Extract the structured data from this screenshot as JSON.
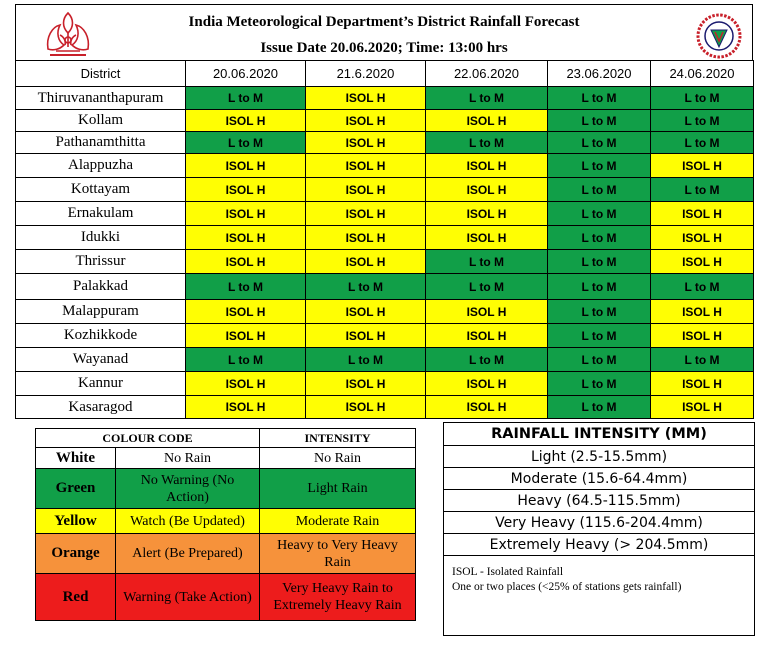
{
  "header": {
    "title": "India Meteorological Department’s District Rainfall Forecast",
    "issue_line": "Issue Date  20.06.2020;  Time: 13:00 hrs"
  },
  "forecast": {
    "column_header": "District",
    "dates": [
      "20.06.2020",
      "21.6.2020",
      "22.06.2020",
      "23.06.2020",
      "24.06.2020"
    ],
    "rows": [
      {
        "district": "Thiruvananthapuram",
        "cells": [
          "L to M",
          "ISOL H",
          "L to M",
          "L to M",
          "L to M"
        ],
        "colors": [
          "green",
          "yellow",
          "green",
          "green",
          "green"
        ]
      },
      {
        "district": "Kollam",
        "cells": [
          "ISOL H",
          "ISOL H",
          "ISOL H",
          "L to M",
          "L to M"
        ],
        "colors": [
          "yellow",
          "yellow",
          "yellow",
          "green",
          "green"
        ]
      },
      {
        "district": "Pathanamthitta",
        "cells": [
          "L to M",
          "ISOL H",
          "L to M",
          "L to M",
          "L to M"
        ],
        "colors": [
          "green",
          "yellow",
          "green",
          "green",
          "green"
        ]
      },
      {
        "district": "Alappuzha",
        "cells": [
          "ISOL H",
          "ISOL H",
          "ISOL H",
          "L to M",
          "ISOL H"
        ],
        "colors": [
          "yellow",
          "yellow",
          "yellow",
          "green",
          "yellow"
        ]
      },
      {
        "district": "Kottayam",
        "cells": [
          "ISOL H",
          "ISOL H",
          "ISOL H",
          "L to M",
          "L to M"
        ],
        "colors": [
          "yellow",
          "yellow",
          "yellow",
          "green",
          "green"
        ]
      },
      {
        "district": "Ernakulam",
        "cells": [
          "ISOL H",
          "ISOL H",
          "ISOL H",
          "L to M",
          "ISOL H"
        ],
        "colors": [
          "yellow",
          "yellow",
          "yellow",
          "green",
          "yellow"
        ]
      },
      {
        "district": "Idukki",
        "cells": [
          "ISOL H",
          "ISOL H",
          "ISOL H",
          "L to M",
          "ISOL H"
        ],
        "colors": [
          "yellow",
          "yellow",
          "yellow",
          "green",
          "yellow"
        ]
      },
      {
        "district": "Thrissur",
        "cells": [
          "ISOL H",
          "ISOL H",
          "L to M",
          "L to M",
          "ISOL H"
        ],
        "colors": [
          "yellow",
          "yellow",
          "green",
          "green",
          "yellow"
        ]
      },
      {
        "district": "Palakkad",
        "cells": [
          "L to M",
          "L to M",
          "L to M",
          "L to M",
          "L to M"
        ],
        "colors": [
          "green",
          "green",
          "green",
          "green",
          "green"
        ]
      },
      {
        "district": "Malappuram",
        "cells": [
          "ISOL H",
          "ISOL H",
          "ISOL H",
          "L to M",
          "ISOL H"
        ],
        "colors": [
          "yellow",
          "yellow",
          "yellow",
          "green",
          "yellow"
        ]
      },
      {
        "district": "Kozhikkode",
        "cells": [
          "ISOL H",
          "ISOL H",
          "ISOL H",
          "L to M",
          "ISOL H"
        ],
        "colors": [
          "yellow",
          "yellow",
          "yellow",
          "green",
          "yellow"
        ]
      },
      {
        "district": "Wayanad",
        "cells": [
          "L to M",
          "L to M",
          "L to M",
          "L to M",
          "L to M"
        ],
        "colors": [
          "green",
          "green",
          "green",
          "green",
          "green"
        ]
      },
      {
        "district": "Kannur",
        "cells": [
          "ISOL H",
          "ISOL H",
          "ISOL H",
          "L to M",
          "ISOL H"
        ],
        "colors": [
          "yellow",
          "yellow",
          "yellow",
          "green",
          "yellow"
        ]
      },
      {
        "district": "Kasaragod",
        "cells": [
          "ISOL H",
          "ISOL H",
          "ISOL H",
          "L to M",
          "ISOL H"
        ],
        "colors": [
          "yellow",
          "yellow",
          "yellow",
          "green",
          "yellow"
        ]
      }
    ]
  },
  "legend": {
    "col1": "COLOUR CODE",
    "col2": "INTENSITY",
    "rows": [
      {
        "name": "White",
        "meaning": "No Rain",
        "intensity": "No Rain",
        "color": "white"
      },
      {
        "name": "Green",
        "meaning": "No Warning  (No Action)",
        "intensity": "Light  Rain",
        "color": "green"
      },
      {
        "name": "Yellow",
        "meaning": "Watch (Be Updated)",
        "intensity": "Moderate Rain",
        "color": "yellow"
      },
      {
        "name": "Orange",
        "meaning": "Alert  (Be Prepared)",
        "intensity": "Heavy  to Very Heavy Rain",
        "color": "orange"
      },
      {
        "name": "Red",
        "meaning": "Warning  (Take Action)",
        "intensity": "Very Heavy Rain to Extremely  Heavy Rain",
        "color": "red"
      }
    ]
  },
  "rainfall_intensity": {
    "title": "RAINFALL INTENSITY (MM)",
    "items": [
      "Light (2.5-15.5mm)",
      "Moderate (15.6-64.4mm)",
      "Heavy (64.5-115.5mm)",
      "Very Heavy (115.6-204.4mm)",
      "Extremely Heavy (> 204.5mm)"
    ]
  },
  "note": {
    "line1": "ISOL  - Isolated Rainfall",
    "line2": "One or two places (<25%  of stations gets rainfall)"
  },
  "colors": {
    "green": "#119f48",
    "yellow": "#fffe03",
    "orange": "#f6923b",
    "red": "#ed1c1c",
    "white": "#ffffff"
  }
}
